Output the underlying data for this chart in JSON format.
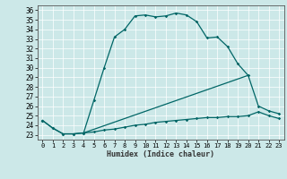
{
  "xlabel": "Humidex (Indice chaleur)",
  "bg_color": "#cce8e8",
  "grid_color": "#ffffff",
  "line_color": "#006666",
  "xlim": [
    -0.5,
    23.5
  ],
  "ylim": [
    22.5,
    36.5
  ],
  "xticks": [
    0,
    1,
    2,
    3,
    4,
    5,
    6,
    7,
    8,
    9,
    10,
    11,
    12,
    13,
    14,
    15,
    16,
    17,
    18,
    19,
    20,
    21,
    22,
    23
  ],
  "yticks": [
    23,
    24,
    25,
    26,
    27,
    28,
    29,
    30,
    31,
    32,
    33,
    34,
    35,
    36
  ],
  "line1_x": [
    0,
    1,
    2,
    3,
    4,
    5,
    6,
    7,
    8,
    9,
    10,
    11,
    12,
    13,
    14,
    15,
    16,
    17,
    18,
    19,
    20,
    21,
    22,
    23
  ],
  "line1_y": [
    24.5,
    23.7,
    23.1,
    23.1,
    23.2,
    26.6,
    30.0,
    33.2,
    34.0,
    35.4,
    35.5,
    35.3,
    35.4,
    35.7,
    35.5,
    34.8,
    33.1,
    33.2,
    32.2,
    30.4,
    29.2,
    26.0,
    25.5,
    25.2
  ],
  "line2_x": [
    0,
    1,
    2,
    3,
    4,
    5,
    6,
    7,
    8,
    9,
    10,
    11,
    12,
    13,
    14,
    15,
    16,
    17,
    18,
    19,
    20,
    21,
    22,
    23
  ],
  "line2_y": [
    24.5,
    23.7,
    23.1,
    23.1,
    23.2,
    23.3,
    23.5,
    23.6,
    23.8,
    24.0,
    24.1,
    24.3,
    24.4,
    24.5,
    24.6,
    24.7,
    24.8,
    24.8,
    24.9,
    24.9,
    25.0,
    25.4,
    25.0,
    24.7
  ],
  "line3_x": [
    4,
    20
  ],
  "line3_y": [
    23.2,
    29.2
  ]
}
